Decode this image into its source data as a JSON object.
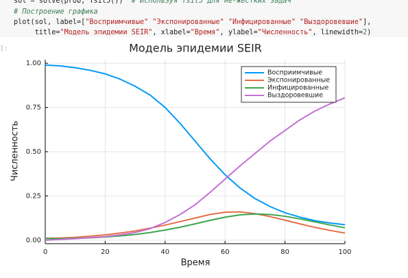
{
  "code": {
    "prompt": "]:",
    "lines": [
      [
        {
          "text": "sol = solve(prob, Tsit5())  ",
          "color": "#222222"
        },
        {
          "text": "# Используя Tsit5 для не-жестких задач",
          "color": "#3b7a57",
          "italic": true
        }
      ],
      [
        {
          "text": "# Построение графика",
          "color": "#3b7a57",
          "italic": true
        }
      ],
      [
        {
          "text": "plot(sol, label=[",
          "color": "#222222"
        },
        {
          "text": "\"Восприимчивые\"",
          "color": "#b22222"
        },
        {
          "text": " ",
          "color": "#222222"
        },
        {
          "text": "\"Экспонированные\"",
          "color": "#b22222"
        },
        {
          "text": " ",
          "color": "#222222"
        },
        {
          "text": "\"Инфицированные\"",
          "color": "#b22222"
        },
        {
          "text": " ",
          "color": "#222222"
        },
        {
          "text": "\"Выздоровевшие\"",
          "color": "#b22222"
        },
        {
          "text": "],",
          "color": "#222222"
        }
      ],
      [
        {
          "text": "     title=",
          "color": "#222222"
        },
        {
          "text": "\"Модель эпидемии SEIR\"",
          "color": "#b22222"
        },
        {
          "text": ", xlabel=",
          "color": "#222222"
        },
        {
          "text": "\"Время\"",
          "color": "#b22222"
        },
        {
          "text": ", ylabel=",
          "color": "#222222"
        },
        {
          "text": "\"Численность\"",
          "color": "#b22222"
        },
        {
          "text": ", linewidth=",
          "color": "#222222"
        },
        {
          "text": "2",
          "color": "#3b7a57"
        },
        {
          "text": ")",
          "color": "#222222"
        }
      ]
    ]
  },
  "chart_data": {
    "type": "line",
    "title": "Модель эпидемии SEIR",
    "xlabel": "Время",
    "ylabel": "Численность",
    "x": [
      0,
      5,
      10,
      15,
      20,
      25,
      30,
      35,
      40,
      45,
      50,
      55,
      60,
      65,
      70,
      75,
      80,
      85,
      90,
      95,
      100
    ],
    "series": [
      {
        "name": "Восприимчивые",
        "color": "#009af9",
        "values": [
          0.99,
          0.985,
          0.975,
          0.96,
          0.94,
          0.91,
          0.87,
          0.82,
          0.75,
          0.66,
          0.56,
          0.46,
          0.37,
          0.295,
          0.235,
          0.19,
          0.155,
          0.13,
          0.11,
          0.097,
          0.087
        ]
      },
      {
        "name": "Экспонированные",
        "color": "#e26f46",
        "values": [
          0.01,
          0.012,
          0.016,
          0.022,
          0.03,
          0.04,
          0.052,
          0.068,
          0.085,
          0.105,
          0.125,
          0.145,
          0.158,
          0.16,
          0.15,
          0.133,
          0.113,
          0.092,
          0.072,
          0.055,
          0.04
        ]
      },
      {
        "name": "Инфицированные",
        "color": "#3da44d",
        "values": [
          0.01,
          0.008,
          0.01,
          0.013,
          0.018,
          0.024,
          0.032,
          0.043,
          0.057,
          0.073,
          0.092,
          0.112,
          0.13,
          0.143,
          0.148,
          0.145,
          0.135,
          0.12,
          0.103,
          0.086,
          0.07
        ]
      },
      {
        "name": "Выздоровевшие",
        "color": "#c271d2",
        "values": [
          0,
          0.004,
          0.008,
          0.014,
          0.02,
          0.03,
          0.043,
          0.065,
          0.1,
          0.145,
          0.2,
          0.27,
          0.345,
          0.42,
          0.49,
          0.56,
          0.62,
          0.68,
          0.73,
          0.77,
          0.805
        ]
      }
    ],
    "xlim": [
      0,
      100
    ],
    "xticks": [
      0,
      20,
      40,
      60,
      80,
      100
    ],
    "ylim": [
      -0.02,
      1.02
    ],
    "yticks": [
      {
        "value": 0,
        "label": "0.00"
      },
      {
        "value": 0.25,
        "label": "0.25"
      },
      {
        "value": 0.5,
        "label": "0.50"
      },
      {
        "value": 0.75,
        "label": "0.75"
      },
      {
        "value": 1,
        "label": "1.00"
      }
    ],
    "grid": true,
    "legend": "top-right"
  }
}
